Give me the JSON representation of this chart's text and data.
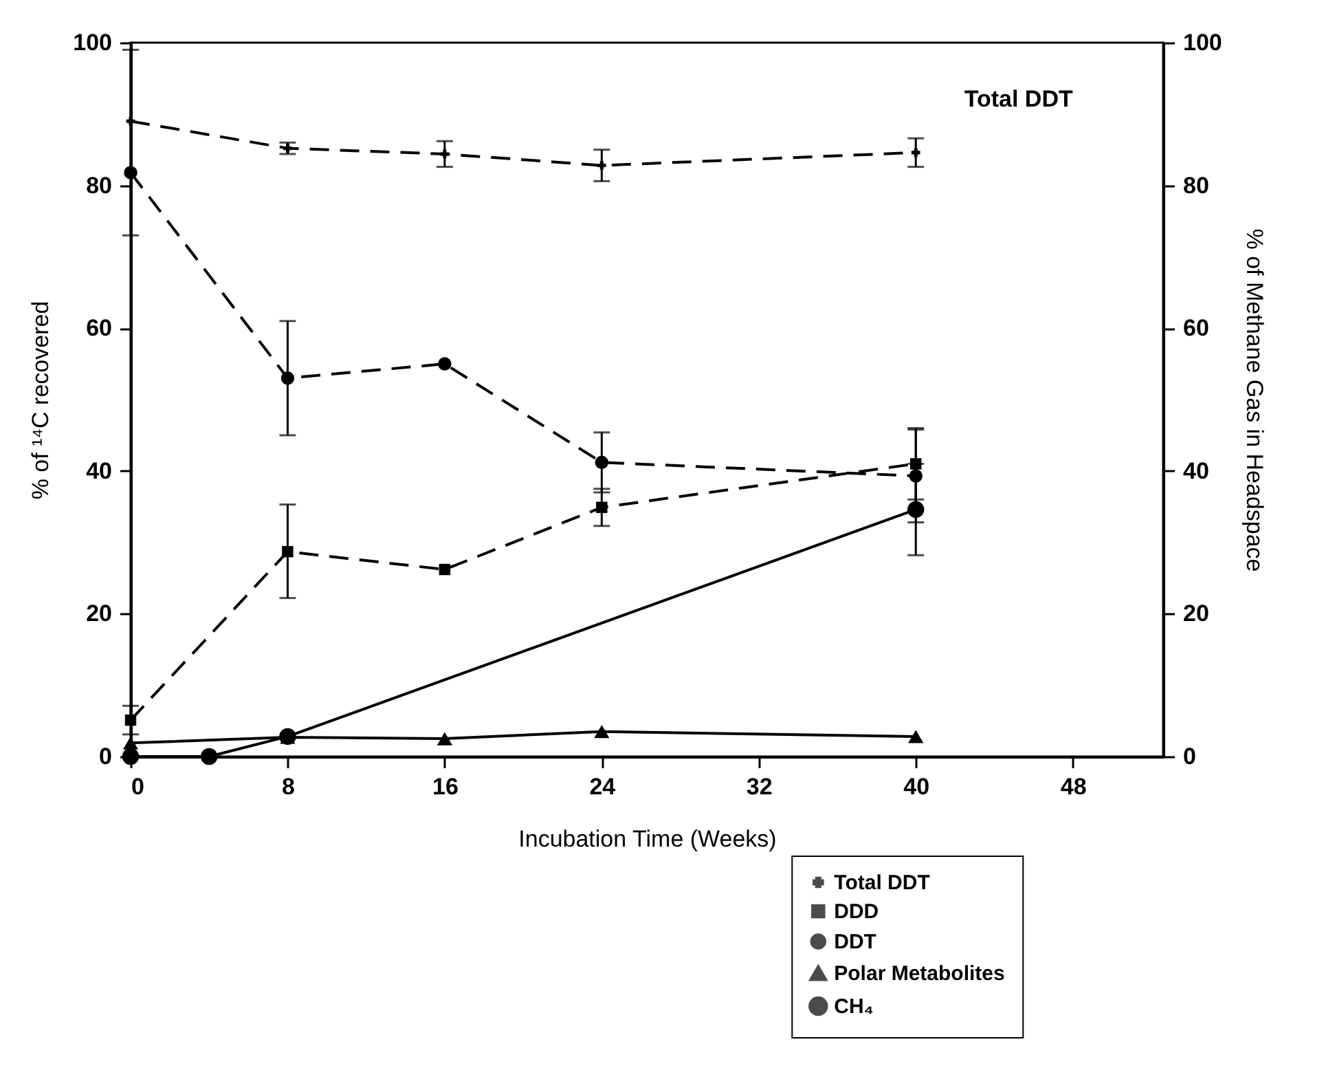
{
  "chart_data": {
    "type": "line",
    "xlabel": "Incubation Time (Weeks)",
    "ylabel": "% of ¹⁴C recovered",
    "y2label": "% of Methane Gas in Headspace",
    "xlim": [
      0,
      52.6
    ],
    "xticks": [
      0,
      8,
      16,
      24,
      32,
      40,
      48
    ],
    "ylim": [
      0,
      100
    ],
    "yticks": [
      0,
      20,
      40,
      60,
      80,
      100
    ],
    "y2lim": [
      0,
      100
    ],
    "y2ticks": [
      0,
      20,
      40,
      60,
      80,
      100
    ],
    "grid": false,
    "legend": "bottom right",
    "annotations": [
      "Total DDT"
    ],
    "series": [
      {
        "name": "Total DDT",
        "color": "#000000",
        "marker": "cross",
        "line_style": "dashed",
        "x": [
          0,
          8,
          16,
          24,
          40
        ],
        "values": [
          89,
          85.2,
          84.4,
          82.8,
          84.6
        ],
        "errors": [
          [
            73,
            99
          ],
          0.8,
          1.8,
          2.2,
          2
        ]
      },
      {
        "name": "DDD",
        "color": "#000000",
        "marker": "square",
        "line_style": "dashed",
        "x": [
          0,
          8,
          16,
          24,
          40
        ],
        "values": [
          5.1,
          28.7,
          26.2,
          34.9,
          41
        ],
        "errors": [
          2,
          [
            22.2,
            35.3
          ],
          null,
          2.6,
          5
        ]
      },
      {
        "name": "DDT",
        "color": "#000000",
        "marker": "circle",
        "line_style": "dashed",
        "x": [
          0,
          8,
          16,
          24,
          40
        ],
        "values": [
          81.8,
          53,
          55,
          41.2,
          39.3
        ],
        "errors": [
          null,
          [
            45,
            61
          ],
          null,
          4.2,
          6.5
        ]
      },
      {
        "name": "Polar Metabolites",
        "color": "#000000",
        "marker": "triangle",
        "line_style": "solid",
        "x": [
          0,
          8,
          16,
          24,
          40
        ],
        "values": [
          1.9,
          2.7,
          2.5,
          3.5,
          2.8
        ]
      },
      {
        "name": "CH₄",
        "color": "#000000",
        "marker": "circle",
        "line_style": "solid",
        "axis": "y2",
        "x": [
          0,
          4,
          8,
          40
        ],
        "values": [
          0,
          0,
          2.8,
          34.6
        ],
        "errors": [
          null,
          null,
          null,
          6.4
        ]
      }
    ]
  }
}
